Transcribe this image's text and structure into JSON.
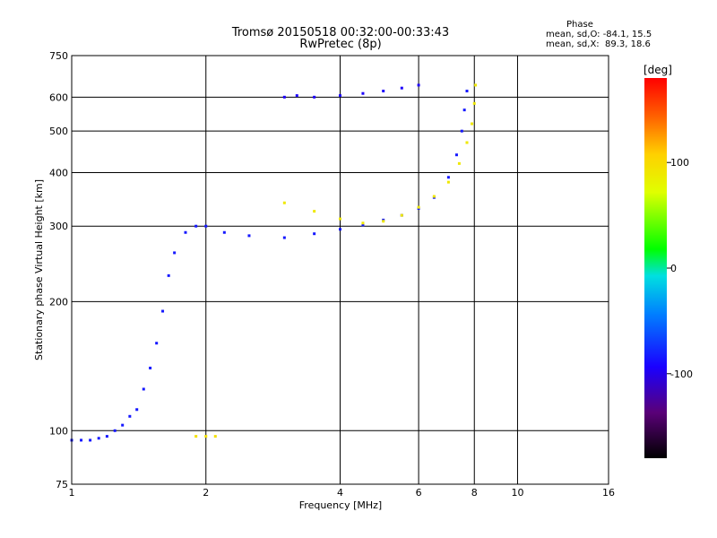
{
  "chart_data": {
    "type": "scatter",
    "title": "Tromsø 20150518 00:32:00-00:33:43",
    "subtitle": "RwPretec (8p)",
    "xlabel": "Frequency [MHz]",
    "ylabel": "Stationary phase Virtual Height [km]",
    "x_scale": "log",
    "y_scale": "log",
    "xlim": [
      1,
      16
    ],
    "ylim": [
      75,
      750
    ],
    "x_ticks": [
      "1",
      "2",
      "4",
      "6",
      "8",
      "10",
      "16"
    ],
    "y_ticks": [
      "75",
      "100",
      "200",
      "300",
      "400",
      "500",
      "600",
      "750"
    ],
    "grid_x": [
      2,
      4,
      6,
      8,
      10
    ],
    "grid_y": [
      100,
      200,
      300,
      400,
      500,
      600
    ],
    "stats": {
      "heading": "Phase",
      "line_o": "mean, sd,O: -84.1, 15.5",
      "line_x": "mean, sd,X:  89.3, 18.6"
    },
    "colorbar": {
      "label": "[deg]",
      "range": [
        -180,
        180
      ],
      "ticks": [
        "100",
        "0",
        "-100"
      ],
      "tick_values": [
        100,
        0,
        -100
      ]
    },
    "series": [
      {
        "mode": "O",
        "phase_deg": -84.1,
        "points": [
          [
            1.0,
            95
          ],
          [
            1.05,
            95
          ],
          [
            1.1,
            95
          ],
          [
            1.15,
            96
          ],
          [
            1.2,
            97
          ],
          [
            1.25,
            100
          ],
          [
            1.3,
            103
          ],
          [
            1.35,
            108
          ],
          [
            1.4,
            112
          ],
          [
            1.45,
            125
          ],
          [
            1.5,
            140
          ],
          [
            1.55,
            160
          ],
          [
            1.6,
            190
          ],
          [
            1.65,
            230
          ],
          [
            1.7,
            260
          ],
          [
            1.8,
            290
          ],
          [
            1.9,
            300
          ],
          [
            2.0,
            300
          ],
          [
            2.2,
            290
          ],
          [
            2.5,
            285
          ],
          [
            3.0,
            282
          ],
          [
            3.5,
            288
          ],
          [
            4.0,
            295
          ],
          [
            4.5,
            302
          ],
          [
            5.0,
            310
          ],
          [
            5.5,
            318
          ],
          [
            6.0,
            330
          ],
          [
            6.5,
            350
          ],
          [
            7.0,
            390
          ],
          [
            7.3,
            440
          ],
          [
            7.5,
            500
          ],
          [
            7.6,
            560
          ],
          [
            7.7,
            620
          ]
        ]
      },
      {
        "mode": "X",
        "phase_deg": 89.3,
        "points": [
          [
            3.0,
            340
          ],
          [
            3.5,
            325
          ],
          [
            4.0,
            312
          ],
          [
            4.5,
            305
          ],
          [
            5.0,
            308
          ],
          [
            5.5,
            318
          ],
          [
            6.0,
            332
          ],
          [
            6.5,
            352
          ],
          [
            7.0,
            380
          ],
          [
            7.4,
            420
          ],
          [
            7.7,
            470
          ],
          [
            7.9,
            520
          ],
          [
            8.0,
            580
          ],
          [
            8.05,
            640
          ]
        ]
      },
      {
        "mode": "F2 trace",
        "phase_deg": -95,
        "points": [
          [
            3.0,
            600
          ],
          [
            3.2,
            605
          ],
          [
            3.5,
            600
          ],
          [
            4.0,
            605
          ],
          [
            4.5,
            612
          ],
          [
            5.0,
            620
          ],
          [
            5.5,
            630
          ],
          [
            6.0,
            640
          ]
        ]
      },
      {
        "mode": "E trace",
        "phase_deg": 95,
        "points": [
          [
            1.9,
            97
          ],
          [
            2.0,
            97
          ],
          [
            2.1,
            97
          ]
        ]
      }
    ]
  }
}
